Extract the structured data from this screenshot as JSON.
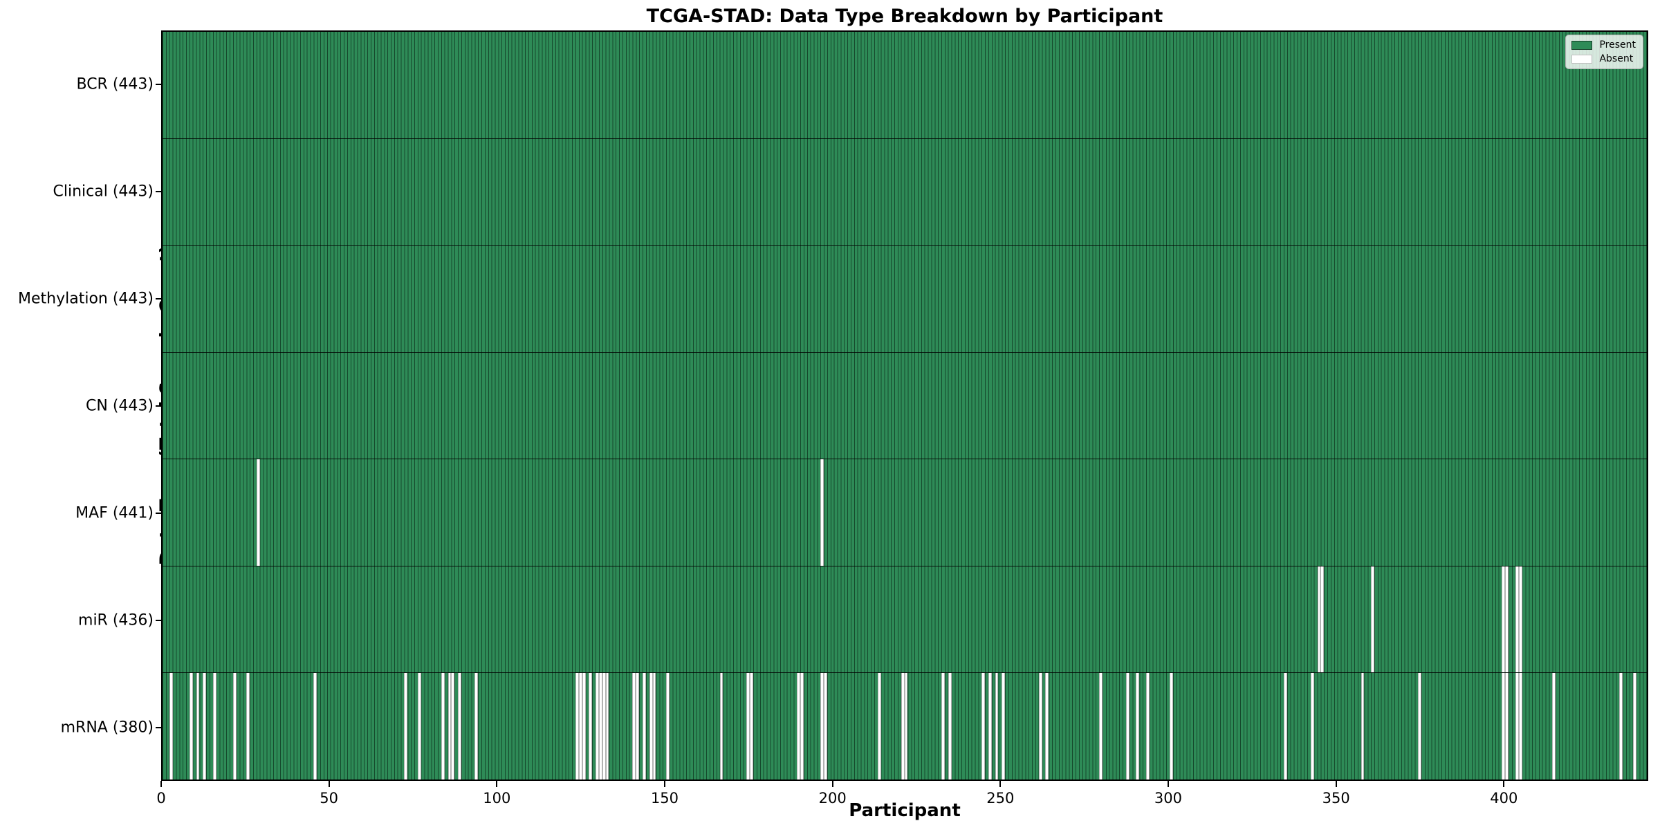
{
  "title": "TCGA-STAD: Data Type Breakdown by Participant",
  "xlabel": "Participant",
  "ylabel": "Data Type (Total Sample Count)",
  "legend": {
    "present_label": "Present",
    "absent_label": "Absent"
  },
  "colors": {
    "present": "#2e8b57",
    "absent": "#ffffff",
    "bar_edge": "#051c10",
    "axis": "#000000"
  },
  "chart_data": {
    "type": "heatmap",
    "title": "TCGA-STAD: Data Type Breakdown by Participant",
    "xlabel": "Participant",
    "ylabel": "Data Type (Total Sample Count)",
    "legend_entries": [
      "Present",
      "Absent"
    ],
    "legend_position": "upper right",
    "n_participants": 443,
    "xlim": [
      0,
      443
    ],
    "x_ticks": [
      0,
      50,
      100,
      150,
      200,
      250,
      300,
      350,
      400
    ],
    "value_encoding": {
      "present": "#2e8b57",
      "absent": "#ffffff"
    },
    "rows": [
      {
        "label": "BCR (443)",
        "name": "BCR",
        "total": 443,
        "absent_participants": []
      },
      {
        "label": "Clinical (443)",
        "name": "Clinical",
        "total": 443,
        "absent_participants": []
      },
      {
        "label": "Methylation (443)",
        "name": "Methylation",
        "total": 443,
        "absent_participants": []
      },
      {
        "label": "CN (443)",
        "name": "CN",
        "total": 443,
        "absent_participants": []
      },
      {
        "label": "MAF (441)",
        "name": "MAF",
        "total": 441,
        "absent_participants": [
          28,
          196
        ]
      },
      {
        "label": "miR (436)",
        "name": "miR",
        "total": 436,
        "absent_participants": [
          344,
          345,
          360,
          399,
          400,
          403,
          404
        ]
      },
      {
        "label": "mRNA (380)",
        "name": "mRNA",
        "total": 380,
        "absent_participants": [
          2,
          8,
          10,
          12,
          15,
          21,
          25,
          45,
          72,
          76,
          83,
          85,
          86,
          88,
          93,
          123,
          124,
          125,
          127,
          129,
          130,
          131,
          132,
          140,
          141,
          143,
          145,
          146,
          150,
          166,
          174,
          175,
          189,
          190,
          196,
          197,
          213,
          220,
          221,
          232,
          234,
          244,
          246,
          248,
          250,
          261,
          263,
          279,
          287,
          290,
          293,
          300,
          334,
          342,
          357,
          374,
          399,
          400,
          403,
          404,
          414,
          434,
          438
        ]
      }
    ]
  }
}
